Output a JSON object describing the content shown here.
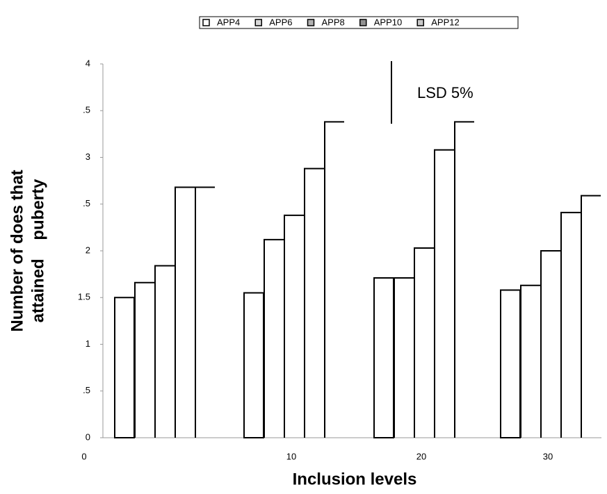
{
  "chart_data": {
    "type": "bar",
    "y_label": [
      "Number of does that",
      "attained    puberty"
    ],
    "x_label": "Inclusion levels",
    "categories": [
      "0",
      "10",
      "20",
      "30"
    ],
    "series": [
      {
        "name": "APP4",
        "color": "#ffffff",
        "values": [
          1.5,
          1.55,
          1.71,
          1.58
        ]
      },
      {
        "name": "APP6",
        "color": "#d8d8d8",
        "values": [
          1.66,
          2.12,
          1.71,
          1.63
        ]
      },
      {
        "name": "APP8",
        "color": "#b0b0b0",
        "values": [
          1.84,
          2.38,
          2.03,
          2.0
        ]
      },
      {
        "name": "APP10",
        "color": "#909090",
        "values": [
          2.68,
          2.88,
          3.08,
          2.41
        ]
      },
      {
        "name": "APP12",
        "color": "#c8c8c8",
        "values": [
          2.68,
          3.38,
          3.38,
          2.59
        ]
      }
    ],
    "ylim": [
      0,
      4
    ],
    "yticks": [
      0,
      {
        "value": 0.5,
        "label": ".5"
      },
      1,
      1.5,
      2,
      {
        "value": 2.5,
        "label": ".5"
      },
      3,
      {
        "value": 3.5,
        "label": ".5"
      },
      4
    ],
    "annotation": {
      "label": "LSD 5%",
      "value": 0.67
    },
    "legend": "top"
  }
}
